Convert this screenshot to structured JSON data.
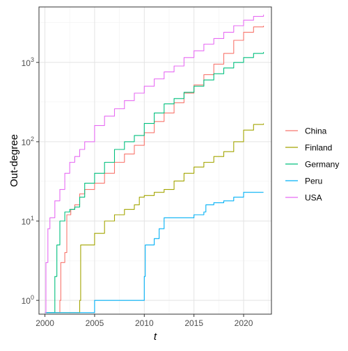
{
  "chart_data": {
    "type": "line",
    "title": "",
    "xlabel": "t",
    "ylabel": "Out-degree",
    "y_scale": "log10",
    "xlim": [
      1999.4,
      2022.8
    ],
    "ylim": [
      0.67,
      5000
    ],
    "x_ticks": [
      2000,
      2005,
      2010,
      2015,
      2020
    ],
    "x_tick_labels": [
      "2000",
      "2005",
      "2010",
      "2015",
      "2020"
    ],
    "y_ticks": [
      1,
      10,
      100,
      1000
    ],
    "y_tick_labels": [
      {
        "base": "10",
        "exp": "0"
      },
      {
        "base": "10",
        "exp": "1"
      },
      {
        "base": "10",
        "exp": "2"
      },
      {
        "base": "10",
        "exp": "3"
      }
    ],
    "grid": true,
    "legend_position": "right",
    "series": [
      {
        "name": "China",
        "color": "#F8766D",
        "x": [
          2000,
          2001.5,
          2001.6,
          2002.0,
          2002.2,
          2002.6,
          2003.0,
          2003.5,
          2004.0,
          2005.0,
          2006.0,
          2007.0,
          2008.0,
          2009.0,
          2010.0,
          2011.0,
          2012.0,
          2013.0,
          2014.0,
          2015.0,
          2016.0,
          2017.0,
          2018.0,
          2019.0,
          2020.0,
          2021.0,
          2022.0
        ],
        "y": [
          0.7,
          1,
          3,
          4,
          12,
          14,
          16,
          22,
          25,
          30,
          40,
          55,
          70,
          90,
          130,
          180,
          230,
          310,
          410,
          520,
          700,
          950,
          1300,
          1900,
          2400,
          2800,
          2900
        ]
      },
      {
        "name": "Finland",
        "color": "#A3A500",
        "x": [
          2000,
          2003.5,
          2003.6,
          2005.0,
          2006.0,
          2007.0,
          2008.0,
          2009.0,
          2009.5,
          2010.0,
          2011.0,
          2012.0,
          2013.0,
          2014.0,
          2015.0,
          2016.0,
          2017.0,
          2018.0,
          2019.0,
          2020.0,
          2021.0,
          2022.0
        ],
        "y": [
          0.7,
          1,
          5,
          7,
          10,
          12,
          14,
          16,
          20,
          21,
          23,
          25,
          32,
          40,
          48,
          55,
          65,
          75,
          100,
          140,
          165,
          170
        ]
      },
      {
        "name": "Germany",
        "color": "#00BF7D",
        "x": [
          2000,
          2001.0,
          2001.2,
          2001.5,
          2002.0,
          2002.5,
          2003.0,
          2003.5,
          2004.0,
          2005.0,
          2006.0,
          2007.0,
          2008.0,
          2009.0,
          2010.0,
          2011.0,
          2012.0,
          2013.0,
          2014.0,
          2015.0,
          2016.0,
          2017.0,
          2018.0,
          2019.0,
          2020.0,
          2021.0,
          2022.0
        ],
        "y": [
          0.7,
          2,
          5,
          10,
          13,
          14,
          15,
          20,
          30,
          40,
          55,
          80,
          100,
          120,
          170,
          230,
          300,
          350,
          420,
          500,
          600,
          720,
          850,
          1000,
          1150,
          1300,
          1350
        ]
      },
      {
        "name": "Peru",
        "color": "#00B0F6",
        "x": [
          2000,
          2005.0,
          2010.0,
          2010.1,
          2011.0,
          2011.5,
          2012.0,
          2015.0,
          2016.0,
          2016.2,
          2017.0,
          2018.0,
          2019.0,
          2020.0,
          2022.0
        ],
        "y": [
          0.7,
          1,
          2,
          5,
          6,
          8,
          11,
          12,
          13,
          16,
          17,
          18,
          20,
          23,
          23
        ]
      },
      {
        "name": "USA",
        "color": "#E76BF3",
        "x": [
          2000,
          2000.1,
          2000.3,
          2000.5,
          2001.0,
          2001.5,
          2002.0,
          2002.5,
          2003.0,
          2003.5,
          2004.0,
          2005.0,
          2006.0,
          2007.0,
          2008.0,
          2009.0,
          2010.0,
          2011.0,
          2012.0,
          2013.0,
          2014.0,
          2015.0,
          2016.0,
          2017.0,
          2018.0,
          2019.0,
          2020.0,
          2021.0,
          2022.0
        ],
        "y": [
          0.7,
          3,
          8,
          11,
          18,
          25,
          40,
          55,
          65,
          80,
          100,
          160,
          210,
          260,
          330,
          410,
          500,
          620,
          760,
          900,
          1150,
          1400,
          1700,
          2000,
          2400,
          2900,
          3400,
          3800,
          4000
        ]
      }
    ]
  }
}
